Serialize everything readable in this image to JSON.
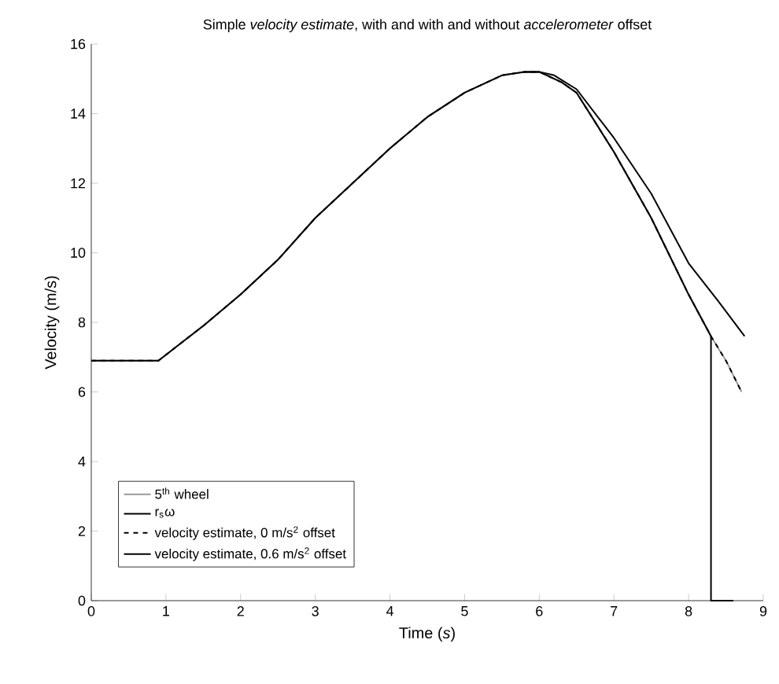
{
  "chart_data": {
    "type": "line",
    "title": "Simple *velocity estimate*, with and with and without *accelerometer* offset",
    "xlabel": "Time (*s*)",
    "ylabel": "Velocity (m/s)",
    "xlim": [
      0,
      9
    ],
    "ylim": [
      0,
      16
    ],
    "xticks": [
      0,
      1,
      2,
      3,
      4,
      5,
      6,
      7,
      8,
      9
    ],
    "yticks": [
      0,
      2,
      4,
      6,
      8,
      10,
      12,
      14,
      16
    ],
    "grid": false,
    "legend": "bottom left",
    "marker": "none",
    "series": [
      {
        "name": "5$^{th}$ wheel",
        "color": "#999999",
        "line_style": "solid",
        "x": [
          0,
          0.9,
          1.2,
          1.5,
          2,
          2.5,
          3,
          3.5,
          4,
          4.5,
          5,
          5.5,
          5.8,
          6,
          6.3,
          6.5,
          7,
          7.5,
          8,
          8.3,
          8.5,
          8.71
        ],
        "values": [
          6.9,
          6.9,
          7.4,
          7.9,
          8.8,
          9.8,
          11,
          12,
          13,
          13.9,
          14.6,
          15.1,
          15.2,
          15.2,
          14.9,
          14.6,
          12.9,
          11,
          8.8,
          7.6,
          6.9,
          6.0
        ]
      },
      {
        "name": "r$_{s}$ω",
        "color": "#000000",
        "line_style": "solid",
        "x": [
          0,
          0.9,
          1.2,
          1.5,
          2,
          2.5,
          3,
          3.5,
          4,
          4.5,
          5,
          5.5,
          5.8,
          6,
          6.3,
          6.5,
          7,
          7.5,
          8,
          8.3,
          8.3,
          8.6
        ],
        "values": [
          6.9,
          6.9,
          7.4,
          7.9,
          8.8,
          9.8,
          11,
          12,
          13,
          13.9,
          14.6,
          15.1,
          15.2,
          15.2,
          14.9,
          14.6,
          12.9,
          11,
          8.8,
          7.6,
          0,
          0
        ]
      },
      {
        "name": "velocity estimate, 0 m/s$^{2}$ offset",
        "color": "#000000",
        "line_style": "dashed",
        "x": [
          0,
          0.9,
          1.2,
          1.5,
          2,
          2.5,
          3,
          3.5,
          4,
          4.5,
          5,
          5.5,
          5.8,
          6,
          6.3,
          6.5,
          7,
          7.5,
          8,
          8.3,
          8.5,
          8.71
        ],
        "values": [
          6.9,
          6.9,
          7.4,
          7.9,
          8.8,
          9.8,
          11,
          12,
          13,
          13.9,
          14.6,
          15.1,
          15.2,
          15.2,
          14.9,
          14.6,
          12.9,
          11,
          8.8,
          7.6,
          6.9,
          6.0
        ]
      },
      {
        "name": "velocity estimate, 0.6 m/s$^{2}$ offset",
        "color": "#000000",
        "line_style": "solid",
        "x": [
          5.8,
          6,
          6.2,
          6.5,
          7,
          7.5,
          8,
          8.4,
          8.75
        ],
        "values": [
          15.2,
          15.2,
          15.1,
          14.7,
          13.3,
          11.7,
          9.7,
          8.6,
          7.6
        ]
      }
    ]
  }
}
